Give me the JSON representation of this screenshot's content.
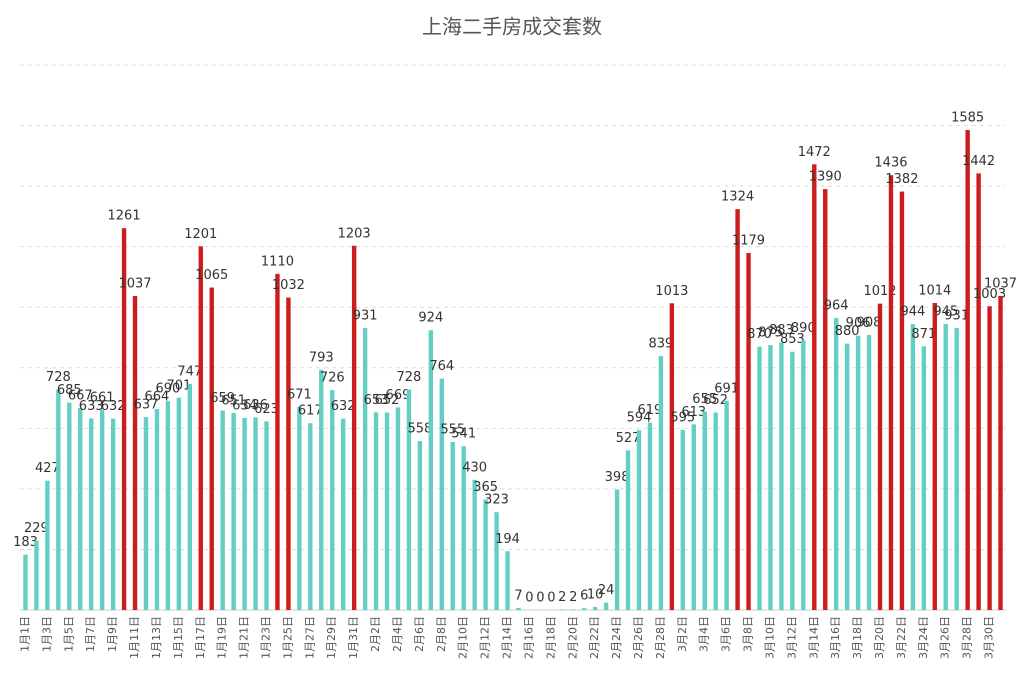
{
  "chart_data": {
    "type": "bar",
    "title": "上海二手房成交套数",
    "categories": [
      "1月1日",
      null,
      "1月3日",
      null,
      "1月5日",
      null,
      "1月7日",
      null,
      "1月9日",
      null,
      "1月11日",
      null,
      "1月13日",
      null,
      "1月15日",
      null,
      "1月17日",
      null,
      "1月19日",
      null,
      "1月21日",
      null,
      "1月23日",
      null,
      "1月25日",
      null,
      "1月27日",
      null,
      "1月29日",
      null,
      "1月31日",
      null,
      "2月2日",
      null,
      "2月4日",
      null,
      "2月6日",
      null,
      "2月8日",
      null,
      "2月10日",
      null,
      "2月12日",
      null,
      "2月14日",
      null,
      "2月16日",
      null,
      "2月18日",
      null,
      "2月20日",
      null,
      "2月22日",
      null,
      "2月24日",
      null,
      "2月26日",
      null,
      "2月28日",
      null,
      "3月2日",
      null,
      "3月4日",
      null,
      "3月6日",
      null,
      "3月8日",
      null,
      "3月10日",
      null,
      "3月12日",
      null,
      "3月14日",
      null,
      "3月16日",
      null,
      "3月18日",
      null,
      "3月20日",
      null,
      "3月22日",
      null,
      "3月24日",
      null,
      "3月26日",
      null,
      "3月28日",
      null,
      "3月30日",
      null
    ],
    "values": [
      183,
      229,
      427,
      728,
      685,
      667,
      633,
      661,
      632,
      1261,
      1037,
      637,
      664,
      690,
      701,
      747,
      1201,
      1065,
      659,
      651,
      634,
      636,
      623,
      1110,
      1032,
      671,
      617,
      793,
      726,
      632,
      1203,
      931,
      653,
      652,
      669,
      728,
      558,
      924,
      764,
      555,
      541,
      430,
      365,
      323,
      194,
      7,
      0,
      0,
      0,
      2,
      2,
      6,
      10,
      24,
      398,
      527,
      594,
      619,
      839,
      1013,
      595,
      613,
      655,
      652,
      691,
      1324,
      1179,
      870,
      875,
      883,
      853,
      890,
      1472,
      1390,
      964,
      880,
      906,
      908,
      1012,
      1436,
      1382,
      944,
      871,
      1014,
      945,
      931,
      1585,
      1442,
      1003,
      1037
    ],
    "colors": [
      "#63cfc3",
      "#63cfc3",
      "#63cfc3",
      "#63cfc3",
      "#63cfc3",
      "#63cfc3",
      "#63cfc3",
      "#63cfc3",
      "#63cfc3",
      "#cc1d1d",
      "#cc1d1d",
      "#63cfc3",
      "#63cfc3",
      "#63cfc3",
      "#63cfc3",
      "#63cfc3",
      "#cc1d1d",
      "#cc1d1d",
      "#63cfc3",
      "#63cfc3",
      "#63cfc3",
      "#63cfc3",
      "#63cfc3",
      "#cc1d1d",
      "#cc1d1d",
      "#63cfc3",
      "#63cfc3",
      "#63cfc3",
      "#63cfc3",
      "#63cfc3",
      "#cc1d1d",
      "#63cfc3",
      "#63cfc3",
      "#63cfc3",
      "#63cfc3",
      "#63cfc3",
      "#63cfc3",
      "#63cfc3",
      "#63cfc3",
      "#63cfc3",
      "#63cfc3",
      "#63cfc3",
      "#63cfc3",
      "#63cfc3",
      "#63cfc3",
      "#63cfc3",
      "#63cfc3",
      "#63cfc3",
      "#63cfc3",
      "#63cfc3",
      "#63cfc3",
      "#63cfc3",
      "#63cfc3",
      "#63cfc3",
      "#63cfc3",
      "#63cfc3",
      "#63cfc3",
      "#63cfc3",
      "#63cfc3",
      "#cc1d1d",
      "#63cfc3",
      "#63cfc3",
      "#63cfc3",
      "#63cfc3",
      "#63cfc3",
      "#cc1d1d",
      "#cc1d1d",
      "#63cfc3",
      "#63cfc3",
      "#63cfc3",
      "#63cfc3",
      "#63cfc3",
      "#cc1d1d",
      "#cc1d1d",
      "#63cfc3",
      "#63cfc3",
      "#63cfc3",
      "#63cfc3",
      "#cc1d1d",
      "#cc1d1d",
      "#cc1d1d",
      "#63cfc3",
      "#63cfc3",
      "#cc1d1d",
      "#63cfc3",
      "#63cfc3",
      "#cc1d1d",
      "#cc1d1d",
      "#cc1d1d",
      "#cc1d1d"
    ],
    "ylim": [
      0,
      1800
    ],
    "yticks": [
      0,
      200,
      400,
      600,
      800,
      1000,
      1200,
      1400,
      1600,
      1800
    ],
    "grid": true
  }
}
